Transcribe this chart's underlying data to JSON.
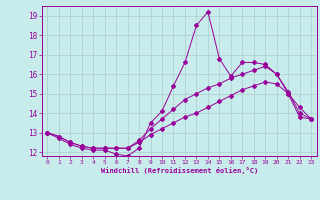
{
  "xlabel": "Windchill (Refroidissement éolien,°C)",
  "bg_color": "#c8ecec",
  "line_color": "#990099",
  "grid_color": "#aacccc",
  "xlim": [
    -0.5,
    23.5
  ],
  "ylim": [
    11.8,
    19.5
  ],
  "yticks": [
    12,
    13,
    14,
    15,
    16,
    17,
    18,
    19
  ],
  "xticks": [
    0,
    1,
    2,
    3,
    4,
    5,
    6,
    7,
    8,
    9,
    10,
    11,
    12,
    13,
    14,
    15,
    16,
    17,
    18,
    19,
    20,
    21,
    22,
    23
  ],
  "line1_x": [
    0,
    1,
    2,
    3,
    4,
    5,
    6,
    7,
    8,
    9,
    10,
    11,
    12,
    13,
    14,
    15,
    16,
    17,
    18,
    19,
    20,
    21,
    22,
    23
  ],
  "line1_y": [
    13.0,
    12.7,
    12.4,
    12.2,
    12.1,
    12.1,
    11.9,
    11.8,
    12.2,
    13.5,
    14.1,
    15.4,
    16.6,
    18.5,
    19.2,
    16.8,
    15.9,
    16.6,
    16.6,
    16.5,
    16.0,
    15.0,
    14.3,
    13.7
  ],
  "line2_x": [
    0,
    1,
    2,
    3,
    4,
    5,
    6,
    7,
    8,
    9,
    10,
    11,
    12,
    13,
    14,
    15,
    16,
    17,
    18,
    19,
    20,
    21,
    22,
    23
  ],
  "line2_y": [
    13.0,
    12.8,
    12.5,
    12.3,
    12.2,
    12.2,
    12.2,
    12.2,
    12.6,
    13.2,
    13.7,
    14.2,
    14.7,
    15.0,
    15.3,
    15.5,
    15.8,
    16.0,
    16.2,
    16.4,
    16.0,
    15.1,
    14.0,
    13.7
  ],
  "line3_x": [
    0,
    1,
    2,
    3,
    4,
    5,
    6,
    7,
    8,
    9,
    10,
    11,
    12,
    13,
    14,
    15,
    16,
    17,
    18,
    19,
    20,
    21,
    22,
    23
  ],
  "line3_y": [
    13.0,
    12.8,
    12.5,
    12.3,
    12.2,
    12.2,
    12.2,
    12.2,
    12.5,
    12.9,
    13.2,
    13.5,
    13.8,
    14.0,
    14.3,
    14.6,
    14.9,
    15.2,
    15.4,
    15.6,
    15.5,
    15.0,
    13.8,
    13.7
  ]
}
